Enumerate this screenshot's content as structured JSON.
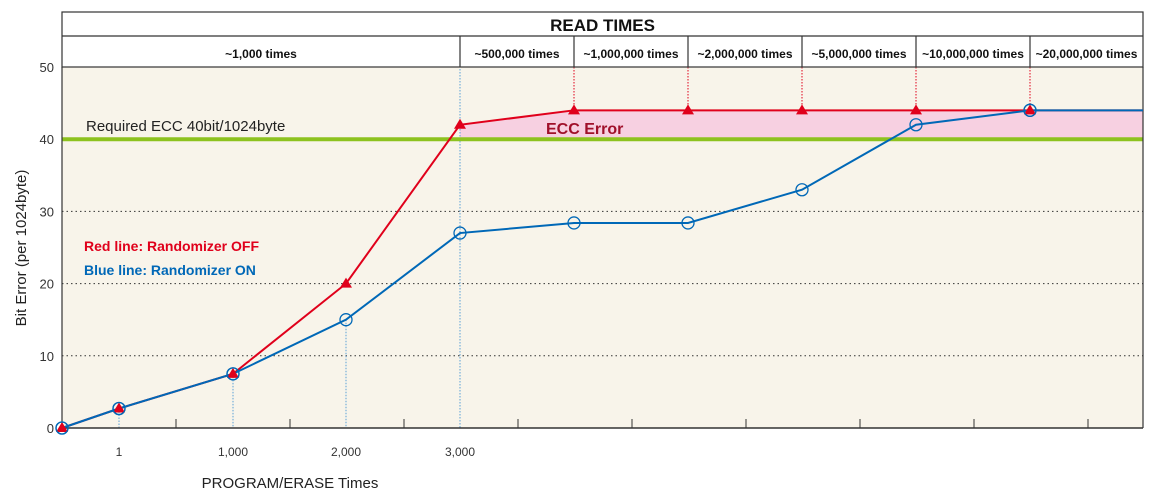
{
  "chart_data": {
    "type": "line",
    "header_title": "READ TIMES",
    "read_time_labels": [
      "~1,000 times",
      "~500,000 times",
      "~1,000,000 times",
      "~2,000,000 times",
      "~5,000,000 times",
      "~10,000,000 times",
      "~20,000,000 times"
    ],
    "xlabel": "PROGRAM/ERASE Times",
    "ylabel": "Bit Error (per 1024byte)",
    "x_tick_labels": [
      "1",
      "1,000",
      "2,000",
      "3,000"
    ],
    "y_ticks": [
      0,
      10,
      20,
      30,
      40,
      50
    ],
    "ylim": [
      0,
      50
    ],
    "grid": "dotted horizontal at 10, 20, 30",
    "threshold": {
      "value": 40,
      "label": "Required ECC 40bit/1024byte",
      "color": "#8dc21f"
    },
    "error_region_label": "ECC Error",
    "error_region_color": "#f7d0e1",
    "legend": [
      "Red line: Randomizer  OFF",
      "Blue line: Randomizer  ON"
    ],
    "legend_placement": "left",
    "points": [
      "0",
      "1",
      "1,000",
      "2,000",
      "3,000",
      "~500,000 times",
      "~1,000,000 times",
      "~2,000,000 times",
      "~5,000,000 times",
      "~10,000,000 times"
    ],
    "series": [
      {
        "name": "Red line: Randomizer  OFF",
        "color": "#e0001b",
        "marker": "triangle",
        "values": [
          0,
          2.7,
          7.5,
          20,
          42,
          44,
          44,
          44,
          44,
          44
        ]
      },
      {
        "name": "Blue line: Randomizer  ON",
        "color": "#0068b7",
        "marker": "circle",
        "values": [
          0,
          2.7,
          7.5,
          15,
          27,
          28.4,
          28.4,
          33,
          42,
          44
        ]
      }
    ],
    "background_color": "#f8f4ea"
  }
}
